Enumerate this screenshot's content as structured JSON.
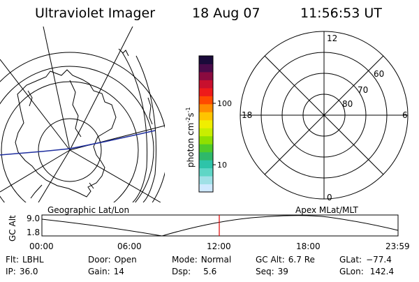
{
  "header": {
    "instrument": "Ultraviolet Imager",
    "date": "18 Aug 07",
    "time": "11:56:53 UT"
  },
  "colorbar": {
    "unit_label": "photon cm",
    "unit_sup1": "-2",
    "unit_mid": "s",
    "unit_sup2": "-1",
    "tick_labels": [
      "100",
      "10"
    ],
    "colors": [
      "#cfe9ff",
      "#9fe0e6",
      "#5fd6c6",
      "#2ec4a9",
      "#2fb86a",
      "#4fcb2a",
      "#8fe000",
      "#c8ee00",
      "#f0ee00",
      "#ffc400",
      "#ff8c00",
      "#ff4a00",
      "#ee1a1a",
      "#c8102e",
      "#8a0a3f",
      "#4a0a4a",
      "#1a0a3a"
    ]
  },
  "polar_plot": {
    "labels_top": "12",
    "labels_bottom": "0",
    "labels_left": "18",
    "labels_right": "6",
    "lat_labels": [
      "60",
      "70",
      "80"
    ]
  },
  "timeline": {
    "left_title": "Geographic Lat/Lon",
    "right_title": "Apex MLat/MLT",
    "axis_label": "GC Alt",
    "y_top": "9.0",
    "y_bottom": "1.8",
    "x_ticks": [
      "00:00",
      "06:00",
      "12:00",
      "18:00",
      "23:59"
    ],
    "current_time_color": "#e00000"
  },
  "info": {
    "row1": [
      {
        "label": "Flt:",
        "value": "LBHL"
      },
      {
        "label": "Door:",
        "value": "Open"
      },
      {
        "label": "Mode:",
        "value": "Normal"
      },
      {
        "label": "GC Alt:",
        "value": "6.7 Re"
      },
      {
        "label": "GLat:",
        "value": "−77.4"
      }
    ],
    "row2": [
      {
        "label": "IP:",
        "value": "36.0"
      },
      {
        "label": "Gain:",
        "value": "14"
      },
      {
        "label": "Dsp:",
        "value": "5.6"
      },
      {
        "label": "Seq:",
        "value": "39"
      },
      {
        "label": "GLon:",
        "value": "142.4"
      }
    ]
  },
  "colors": {
    "track": "#1f2f9f",
    "lines": "#000000",
    "land": "#000000"
  }
}
